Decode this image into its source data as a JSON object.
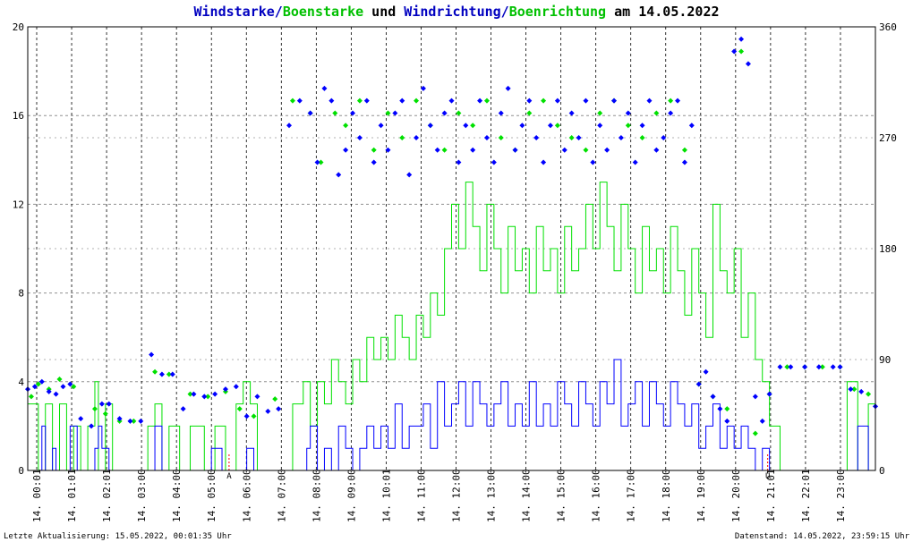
{
  "colors": {
    "wind": "#0000ff",
    "gust": "#00e000",
    "grid": "#909090",
    "marker": "#ff0000"
  },
  "chart_data": {
    "type": "line",
    "title_parts": [
      "Windstarke",
      "/",
      "Boenstarke",
      " und ",
      "Windrichtung",
      "/",
      "Boenrichtung",
      " am 14.05.2022"
    ],
    "left_axis": {
      "ylim": [
        0,
        20
      ],
      "ticks": [
        "0",
        "4",
        "8",
        "12",
        "16",
        "20"
      ]
    },
    "right_axis": {
      "ylim": [
        0,
        360
      ],
      "ticks": [
        "0",
        "90",
        "180",
        "270",
        "360"
      ]
    },
    "x_ticks": [
      "14. 00:01",
      "14. 01:01",
      "14. 02:01",
      "14. 03:00",
      "14. 04:00",
      "14. 05:00",
      "14. 06:00",
      "14. 07:00",
      "14. 08:00",
      "14. 09:00",
      "14. 10:01",
      "14. 11:00",
      "14. 12:00",
      "14. 13:00",
      "14. 14:00",
      "14. 15:00",
      "14. 16:00",
      "14. 17:00",
      "14. 18:00",
      "14. 19:00",
      "14. 20:00",
      "14. 21:01",
      "14. 22:01",
      "14. 23:00"
    ],
    "sun_markers": [
      {
        "label": "A",
        "hour": 5.7
      },
      {
        "label": "U",
        "hour": 20.95
      }
    ],
    "series": [
      {
        "name": "Windstarke",
        "axis": "left",
        "style": "line",
        "x_hours": [
          0.0,
          0.4,
          0.5,
          0.7,
          0.8,
          1.0,
          1.2,
          1.4,
          1.6,
          1.8,
          1.9,
          2.0,
          2.1,
          2.3,
          2.4,
          2.5,
          2.7,
          2.9,
          3.1,
          3.3,
          3.5,
          3.6,
          3.8,
          4.0,
          4.2,
          4.5,
          4.8,
          5.2,
          5.5,
          5.8,
          6.0,
          6.2,
          6.4,
          6.8,
          7.0,
          7.3,
          7.5,
          7.7,
          7.9,
          8.0,
          8.2,
          8.4,
          8.6,
          8.8,
          9.0,
          9.2,
          9.4,
          9.6,
          9.8,
          10.0,
          10.2,
          10.4,
          10.6,
          10.8,
          11.0,
          11.2,
          11.4,
          11.6,
          11.8,
          12.0,
          12.2,
          12.4,
          12.6,
          12.8,
          13.0,
          13.2,
          13.4,
          13.6,
          13.8,
          14.0,
          14.2,
          14.4,
          14.6,
          14.8,
          15.0,
          15.2,
          15.4,
          15.6,
          15.8,
          16.0,
          16.2,
          16.4,
          16.6,
          16.8,
          17.0,
          17.2,
          17.4,
          17.6,
          17.8,
          18.0,
          18.2,
          18.4,
          18.6,
          18.8,
          19.0,
          19.2,
          19.4,
          19.6,
          19.8,
          20.0,
          20.2,
          20.4,
          20.6,
          20.8,
          21.0,
          21.3,
          21.6,
          22.0,
          22.4,
          22.8,
          23.0,
          23.2,
          23.5,
          23.8,
          24.0
        ],
        "values": [
          0,
          2,
          0,
          1,
          0,
          0,
          2,
          0,
          0,
          0,
          1,
          2,
          1,
          0,
          0,
          0,
          0,
          0,
          0,
          0,
          0,
          2,
          0,
          0,
          0,
          0,
          0,
          1,
          0,
          0,
          0,
          1,
          0,
          0,
          0,
          0,
          0,
          0,
          1,
          2,
          0,
          1,
          0,
          2,
          1,
          0,
          1,
          2,
          1,
          2,
          1,
          3,
          1,
          2,
          2,
          3,
          1,
          4,
          2,
          3,
          4,
          2,
          4,
          3,
          2,
          3,
          4,
          2,
          3,
          2,
          4,
          2,
          3,
          2,
          4,
          3,
          2,
          4,
          3,
          2,
          4,
          3,
          5,
          2,
          3,
          4,
          2,
          4,
          3,
          2,
          4,
          3,
          2,
          3,
          1,
          2,
          3,
          1,
          2,
          1,
          2,
          1,
          0,
          1,
          0,
          0,
          0,
          0,
          0,
          0,
          0,
          0,
          2,
          0,
          0
        ]
      },
      {
        "name": "Boenstarke",
        "axis": "left",
        "style": "line",
        "x_hours": [
          0.0,
          0.3,
          0.5,
          0.7,
          0.9,
          1.1,
          1.3,
          1.5,
          1.7,
          1.9,
          2.0,
          2.2,
          2.4,
          2.6,
          2.8,
          3.0,
          3.2,
          3.4,
          3.6,
          3.8,
          4.0,
          4.3,
          4.6,
          5.0,
          5.3,
          5.6,
          5.9,
          6.1,
          6.3,
          6.5,
          6.9,
          7.2,
          7.5,
          7.8,
          8.0,
          8.2,
          8.4,
          8.6,
          8.8,
          9.0,
          9.2,
          9.4,
          9.6,
          9.8,
          10.0,
          10.2,
          10.4,
          10.6,
          10.8,
          11.0,
          11.2,
          11.4,
          11.6,
          11.8,
          12.0,
          12.2,
          12.4,
          12.6,
          12.8,
          13.0,
          13.2,
          13.4,
          13.6,
          13.8,
          14.0,
          14.2,
          14.4,
          14.6,
          14.8,
          15.0,
          15.2,
          15.4,
          15.6,
          15.8,
          16.0,
          16.2,
          16.4,
          16.6,
          16.8,
          17.0,
          17.2,
          17.4,
          17.6,
          17.8,
          18.0,
          18.2,
          18.4,
          18.6,
          18.8,
          19.0,
          19.2,
          19.4,
          19.6,
          19.8,
          20.0,
          20.2,
          20.4,
          20.6,
          20.8,
          21.0,
          21.3,
          21.6,
          22.0,
          22.4,
          22.8,
          23.0,
          23.2,
          23.5,
          23.8,
          24.0
        ],
        "values": [
          3,
          0,
          3,
          0,
          3,
          0,
          2,
          0,
          2,
          4,
          0,
          3,
          0,
          0,
          0,
          0,
          0,
          2,
          3,
          0,
          2,
          0,
          2,
          0,
          2,
          0,
          3,
          4,
          3,
          0,
          0,
          0,
          3,
          4,
          2,
          4,
          3,
          5,
          4,
          3,
          5,
          4,
          6,
          5,
          6,
          5,
          7,
          6,
          5,
          7,
          6,
          8,
          7,
          10,
          12,
          10,
          13,
          11,
          9,
          12,
          10,
          8,
          11,
          9,
          10,
          8,
          11,
          9,
          10,
          8,
          11,
          9,
          10,
          12,
          10,
          13,
          11,
          9,
          12,
          10,
          8,
          11,
          9,
          10,
          8,
          11,
          9,
          7,
          10,
          8,
          6,
          12,
          9,
          8,
          10,
          6,
          8,
          5,
          4,
          2,
          0,
          0,
          0,
          0,
          0,
          0,
          4,
          0,
          3,
          0
        ]
      },
      {
        "name": "Windrichtung",
        "axis": "right",
        "style": "markers",
        "x_hours": [
          0.0,
          0.2,
          0.4,
          0.6,
          0.8,
          1.0,
          1.2,
          1.5,
          1.8,
          2.1,
          2.3,
          2.6,
          2.9,
          3.2,
          3.5,
          3.8,
          4.1,
          4.4,
          4.7,
          5.0,
          5.3,
          5.6,
          5.9,
          6.2,
          6.5,
          6.8,
          7.1,
          7.4,
          7.7,
          8.0,
          8.2,
          8.4,
          8.6,
          8.8,
          9.0,
          9.2,
          9.4,
          9.6,
          9.8,
          10.0,
          10.2,
          10.4,
          10.6,
          10.8,
          11.0,
          11.2,
          11.4,
          11.6,
          11.8,
          12.0,
          12.2,
          12.4,
          12.6,
          12.8,
          13.0,
          13.2,
          13.4,
          13.6,
          13.8,
          14.0,
          14.2,
          14.4,
          14.6,
          14.8,
          15.0,
          15.2,
          15.4,
          15.6,
          15.8,
          16.0,
          16.2,
          16.4,
          16.6,
          16.8,
          17.0,
          17.2,
          17.4,
          17.6,
          17.8,
          18.0,
          18.2,
          18.4,
          18.6,
          18.8,
          19.0,
          19.2,
          19.4,
          19.6,
          19.8,
          20.0,
          20.2,
          20.4,
          20.6,
          20.8,
          21.0,
          21.3,
          21.6,
          22.0,
          22.4,
          22.8,
          23.0,
          23.3,
          23.6,
          24.0
        ],
        "values": [
          66,
          68,
          72,
          64,
          62,
          68,
          70,
          42,
          36,
          54,
          54,
          42,
          40,
          40,
          94,
          78,
          78,
          50,
          62,
          60,
          62,
          66,
          68,
          44,
          60,
          48,
          50,
          280,
          300,
          290,
          250,
          310,
          300,
          240,
          260,
          290,
          270,
          300,
          250,
          280,
          260,
          290,
          300,
          240,
          270,
          310,
          280,
          260,
          290,
          300,
          250,
          280,
          260,
          300,
          270,
          250,
          290,
          310,
          260,
          280,
          300,
          270,
          250,
          280,
          300,
          260,
          290,
          270,
          300,
          250,
          280,
          260,
          300,
          270,
          290,
          250,
          280,
          300,
          260,
          270,
          290,
          300,
          250,
          280,
          70,
          80,
          60,
          50,
          40,
          340,
          350,
          330,
          60,
          40,
          62,
          84,
          84,
          84,
          84,
          84,
          84,
          66,
          64,
          52
        ]
      },
      {
        "name": "Boenrichtung",
        "axis": "right",
        "style": "markers",
        "x_hours": [
          0.1,
          0.3,
          0.6,
          0.9,
          1.3,
          1.9,
          2.2,
          2.6,
          3.0,
          3.6,
          4.0,
          4.6,
          5.1,
          5.6,
          6.0,
          6.4,
          7.0,
          7.5,
          8.0,
          8.3,
          8.7,
          9.0,
          9.4,
          9.8,
          10.2,
          10.6,
          11.0,
          11.4,
          11.8,
          12.2,
          12.6,
          13.0,
          13.4,
          13.8,
          14.2,
          14.6,
          15.0,
          15.4,
          15.8,
          16.2,
          16.6,
          17.0,
          17.4,
          17.8,
          18.2,
          18.6,
          19.0,
          19.4,
          19.8,
          20.2,
          20.6,
          21.0,
          21.5,
          22.0,
          22.5,
          23.0,
          23.4,
          23.8
        ],
        "values": [
          60,
          70,
          66,
          74,
          68,
          50,
          46,
          40,
          40,
          80,
          78,
          62,
          60,
          64,
          50,
          44,
          58,
          300,
          290,
          250,
          290,
          280,
          300,
          260,
          290,
          270,
          300,
          280,
          260,
          290,
          280,
          300,
          270,
          260,
          290,
          300,
          280,
          270,
          260,
          290,
          300,
          280,
          270,
          290,
          300,
          260,
          70,
          60,
          50,
          340,
          30,
          62,
          84,
          84,
          84,
          84,
          66,
          62
        ]
      }
    ]
  },
  "footer": {
    "left": "Letzte Aktualisierung: 15.05.2022, 00:01:35 Uhr",
    "right": "Datenstand: 14.05.2022, 23:59:15 Uhr"
  }
}
